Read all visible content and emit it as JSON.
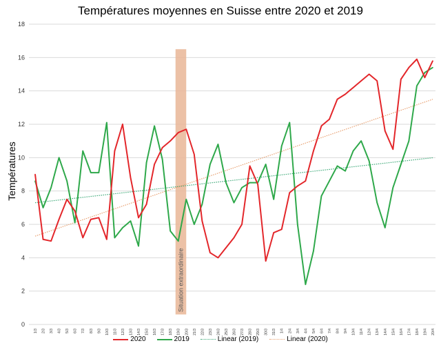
{
  "chart_data": {
    "type": "line",
    "title": "Températures moyennes en Suisse entre 2020 et 2019",
    "xlabel": "",
    "ylabel": "Températures",
    "ylim": [
      0,
      18
    ],
    "yticks": [
      0,
      2,
      4,
      6,
      8,
      10,
      12,
      14,
      16,
      18
    ],
    "grid": true,
    "legend": "bottom",
    "categories": [
      "1/3",
      "2/3",
      "3/3",
      "4/3",
      "5/3",
      "6/3",
      "7/3",
      "8/3",
      "9/3",
      "10/3",
      "11/3",
      "12/3",
      "13/3",
      "14/3",
      "15/3",
      "16/3",
      "17/3",
      "18/3",
      "19/3",
      "20/3",
      "21/3",
      "22/3",
      "23/3",
      "24/3",
      "25/3",
      "26/3",
      "27/3",
      "28/3",
      "29/3",
      "30/3",
      "31/3",
      "1/4",
      "2/4",
      "3/4",
      "4/4",
      "5/4",
      "6/4",
      "7/4",
      "8/4",
      "9/4",
      "10/4",
      "11/4",
      "12/4",
      "13/4",
      "14/4",
      "15/4",
      "16/4",
      "17/4",
      "18/4",
      "19/4",
      "20/4"
    ],
    "series": [
      {
        "name": "2020",
        "color": "#e3262a",
        "values": [
          9.0,
          5.1,
          5.0,
          6.3,
          7.5,
          6.8,
          5.2,
          6.3,
          6.4,
          5.1,
          10.4,
          12.0,
          8.8,
          6.4,
          7.2,
          9.6,
          10.6,
          11.0,
          11.5,
          11.7,
          10.2,
          6.2,
          4.3,
          4.0,
          4.6,
          5.2,
          6.0,
          9.5,
          8.4,
          3.8,
          5.5,
          5.7,
          7.9,
          8.3,
          8.6,
          10.4,
          11.9,
          12.3,
          13.5,
          13.8,
          14.2,
          14.6,
          15.0,
          14.6,
          11.6,
          10.5,
          14.7,
          15.4,
          15.9,
          14.8,
          15.8
        ]
      },
      {
        "name": "2019",
        "color": "#2ea84a",
        "values": [
          8.6,
          7.0,
          8.2,
          10.0,
          8.6,
          6.1,
          10.4,
          9.1,
          9.1,
          12.1,
          5.2,
          5.8,
          6.2,
          4.7,
          9.7,
          11.9,
          9.9,
          5.6,
          5.0,
          7.5,
          6.0,
          7.2,
          9.6,
          10.8,
          8.5,
          7.3,
          8.2,
          8.5,
          8.5,
          9.6,
          7.5,
          10.7,
          12.1,
          6.0,
          2.4,
          4.4,
          7.7,
          8.6,
          9.5,
          9.2,
          10.4,
          11.0,
          9.8,
          7.3,
          5.8,
          8.2,
          9.6,
          11.0,
          14.3,
          15.1,
          15.4
        ]
      }
    ],
    "trendlines": [
      {
        "name": "Linear (2019)",
        "of": "2019",
        "color": "#3aa876"
      },
      {
        "name": "Linear (2020)",
        "of": "2020",
        "color": "#e8a070"
      }
    ],
    "annotation": {
      "text": "Situation extraordinaire",
      "from": "19/3",
      "to": "20/3",
      "color": "#e9b697"
    }
  }
}
